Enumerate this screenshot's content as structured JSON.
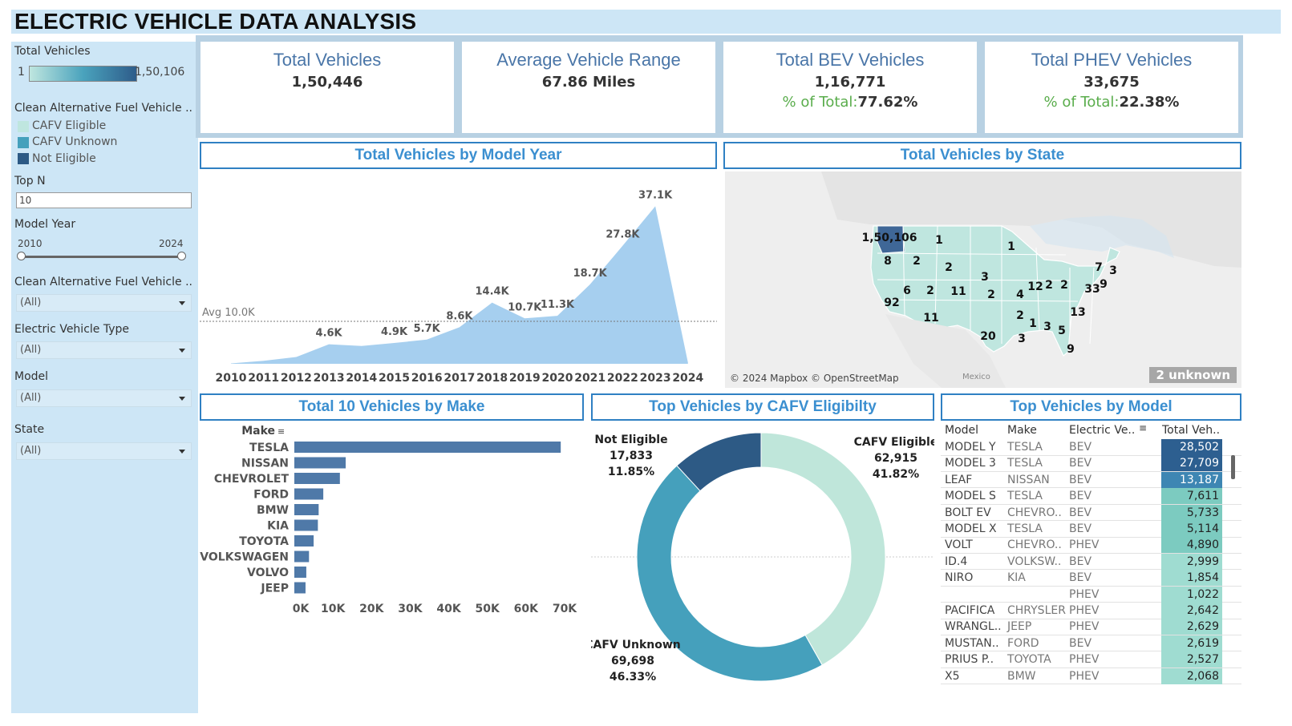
{
  "title": "ELECTRIC VEHICLE DATA ANALYSIS",
  "sidebar": {
    "total_vehicles_label": "Total Vehicles",
    "legend_min": "1",
    "legend_max": "1,50,106",
    "cafv_label": "Clean Alternative Fuel Vehicle ..",
    "cafv_items": [
      {
        "label": "CAFV Eligible",
        "color": "#bfe6df"
      },
      {
        "label": "CAFV Unknown",
        "color": "#45a0bc"
      },
      {
        "label": "Not Eligible",
        "color": "#2d5a85"
      }
    ],
    "topn_label": "Top N",
    "topn_value": "10",
    "model_year_label": "Model Year",
    "model_year_min": "2010",
    "model_year_max": "2024",
    "cafv_filter_label": "Clean Alternative Fuel Vehicle ..",
    "cafv_filter_value": "(All)",
    "ev_type_label": "Electric Vehicle Type",
    "ev_type_value": "(All)",
    "model_label": "Model",
    "model_value": "(All)",
    "state_label": "State",
    "state_value": "(All)"
  },
  "kpis": [
    {
      "title": "Total Vehicles",
      "value": "1,50,446"
    },
    {
      "title": "Average Vehicle Range",
      "value": "67.86 Miles"
    },
    {
      "title": "Total BEV Vehicles",
      "value": "1,16,771",
      "sub_label": "% of Total:",
      "sub_value": "77.62%"
    },
    {
      "title": "Total PHEV Vehicles",
      "value": "33,675",
      "sub_label": "% of Total:",
      "sub_value": "22.38%"
    }
  ],
  "panels": {
    "model_year_title": "Total Vehicles by Model Year",
    "state_title": "Total Vehicles by State",
    "make_title": "Total 10 Vehicles by Make",
    "cafv_title": "Top Vehicles by CAFV Eligibilty",
    "model_title": "Top Vehicles by Model"
  },
  "map": {
    "credit": "© 2024 Mapbox © OpenStreetMap",
    "mexico": "Mexico",
    "unknown": "2 unknown",
    "state_values": [
      "1,50,106",
      "1",
      "8",
      "2",
      "2",
      "1",
      "3",
      "6",
      "2",
      "11",
      "2",
      "92",
      "4",
      "12",
      "2",
      "2",
      "7",
      "3",
      "33",
      "9",
      "11",
      "2",
      "13",
      "1",
      "3",
      "5",
      "20",
      "3",
      "9"
    ]
  },
  "chart_data": [
    {
      "type": "area",
      "title": "Total Vehicles by Model Year",
      "x": [
        "2010",
        "2011",
        "2012",
        "2013",
        "2014",
        "2015",
        "2016",
        "2017",
        "2018",
        "2019",
        "2020",
        "2021",
        "2022",
        "2023",
        "2024"
      ],
      "values": [
        0.1,
        0.7,
        1.6,
        4.6,
        4.2,
        4.9,
        5.7,
        8.6,
        14.4,
        10.7,
        11.3,
        18.7,
        27.8,
        37.1,
        0.3
      ],
      "labels": [
        "",
        "",
        "",
        "4.6K",
        "",
        "4.9K",
        "5.7K",
        "8.6K",
        "14.4K",
        "10.7K",
        "11.3K",
        "18.7K",
        "27.8K",
        "37.1K",
        ""
      ],
      "unit": "K",
      "reference_line": {
        "label": "Avg 10.0K",
        "value": 10.0
      },
      "ylim": [
        0,
        40
      ],
      "color": "#a6cfef",
      "grid": false
    },
    {
      "type": "bar",
      "orientation": "horizontal",
      "title": "Total 10 Vehicles by Make",
      "ylabel": "Make",
      "categories": [
        "TESLA",
        "NISSAN",
        "CHEVROLET",
        "FORD",
        "BMW",
        "KIA",
        "TOYOTA",
        "VOLKSWAGEN",
        "VOLVO",
        "JEEP"
      ],
      "values": [
        69000,
        13300,
        11800,
        7500,
        6300,
        6100,
        5000,
        3800,
        3100,
        2900
      ],
      "xticks": [
        "0K",
        "10K",
        "20K",
        "30K",
        "40K",
        "50K",
        "60K",
        "70K"
      ],
      "xlim": [
        0,
        70000
      ],
      "color": "#4f79a8"
    },
    {
      "type": "pie",
      "title": "Top Vehicles by CAFV Eligibilty",
      "donut": true,
      "slices": [
        {
          "name": "CAFV Eligible",
          "value": 62915,
          "value_label": "62,915",
          "pct": "41.82%",
          "color": "#bfe6da"
        },
        {
          "name": "CAFV Unknown",
          "value": 69698,
          "value_label": "69,698",
          "pct": "46.33%",
          "color": "#45a0bc"
        },
        {
          "name": "Not Eligible",
          "value": 17833,
          "value_label": "17,833",
          "pct": "11.85%",
          "color": "#2d5a85"
        }
      ]
    },
    {
      "type": "table",
      "title": "Top Vehicles by Model",
      "columns": [
        "Model",
        "Make",
        "Electric Ve..",
        "Total Veh.."
      ],
      "rows": [
        {
          "model": "MODEL Y",
          "make": "TESLA",
          "type": "BEV",
          "total": "28,502",
          "n": 28502
        },
        {
          "model": "MODEL 3",
          "make": "TESLA",
          "type": "BEV",
          "total": "27,709",
          "n": 27709
        },
        {
          "model": "LEAF",
          "make": "NISSAN",
          "type": "BEV",
          "total": "13,187",
          "n": 13187
        },
        {
          "model": "MODEL S",
          "make": "TESLA",
          "type": "BEV",
          "total": "7,611",
          "n": 7611
        },
        {
          "model": "BOLT EV",
          "make": "CHEVRO..",
          "type": "BEV",
          "total": "5,733",
          "n": 5733
        },
        {
          "model": "MODEL X",
          "make": "TESLA",
          "type": "BEV",
          "total": "5,114",
          "n": 5114
        },
        {
          "model": "VOLT",
          "make": "CHEVRO..",
          "type": "PHEV",
          "total": "4,890",
          "n": 4890
        },
        {
          "model": "ID.4",
          "make": "VOLKSW..",
          "type": "BEV",
          "total": "2,999",
          "n": 2999
        },
        {
          "model": "NIRO",
          "make": "KIA",
          "type": "BEV",
          "total": "1,854",
          "n": 1854
        },
        {
          "model": "",
          "make": "",
          "type": "PHEV",
          "total": "1,022",
          "n": 1022
        },
        {
          "model": "PACIFICA",
          "make": "CHRYSLER",
          "type": "PHEV",
          "total": "2,642",
          "n": 2642
        },
        {
          "model": "WRANGL..",
          "make": "JEEP",
          "type": "PHEV",
          "total": "2,629",
          "n": 2629
        },
        {
          "model": "MUSTAN..",
          "make": "FORD",
          "type": "BEV",
          "total": "2,619",
          "n": 2619
        },
        {
          "model": "PRIUS P..",
          "make": "TOYOTA",
          "type": "PHEV",
          "total": "2,527",
          "n": 2527
        },
        {
          "model": "X5",
          "make": "BMW",
          "type": "PHEV",
          "total": "2,068",
          "n": 2068
        }
      ]
    }
  ]
}
